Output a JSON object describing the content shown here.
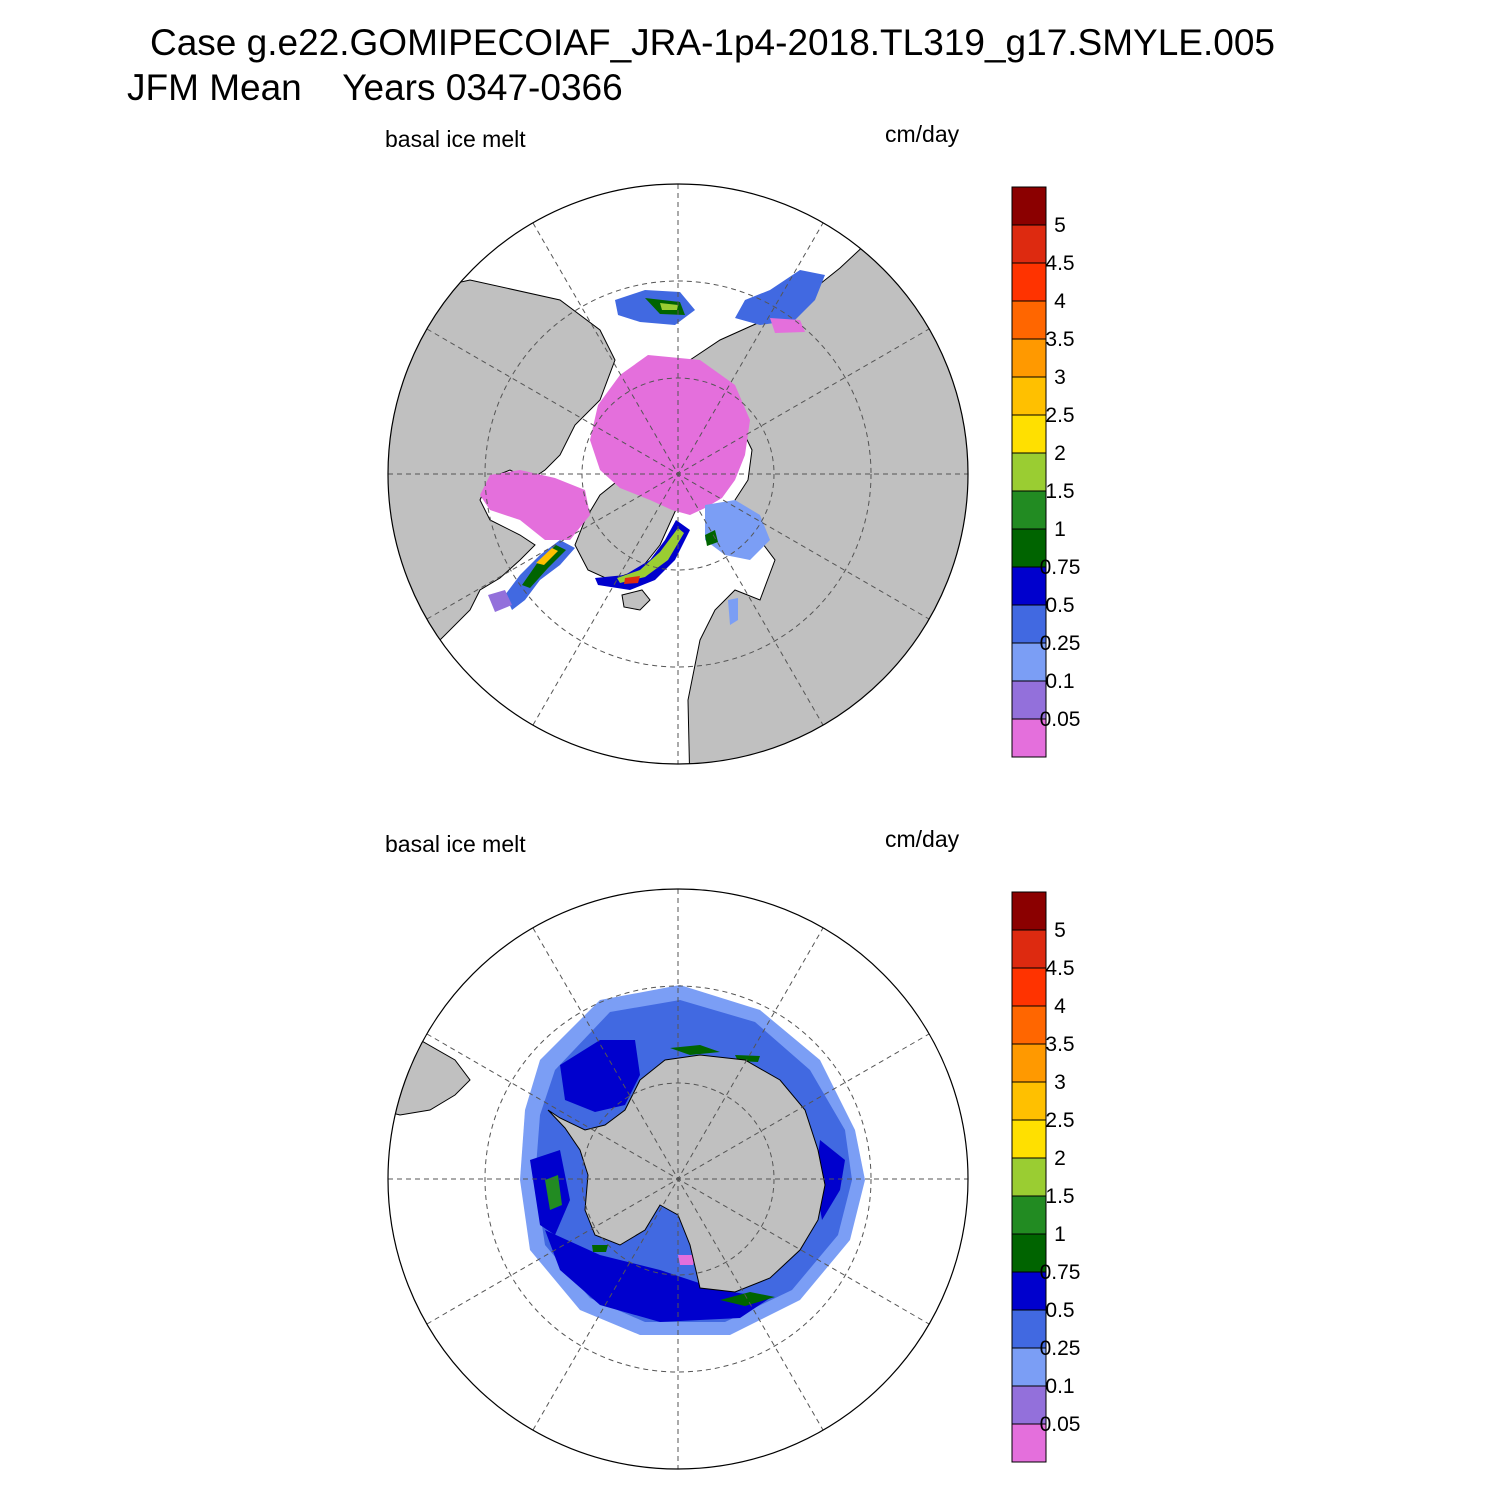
{
  "title": {
    "line1": "Case g.e22.GOMIPECOIAF_JRA-1p4-2018.TL319_g17.SMYLE.005",
    "line2": "JFM Mean    Years 0347-0366"
  },
  "panels": [
    {
      "id": "north",
      "hemisphere": "north",
      "left_label": "basal ice melt",
      "right_label": "cm/day"
    },
    {
      "id": "south",
      "hemisphere": "south",
      "left_label": "basal ice melt",
      "right_label": "cm/day"
    }
  ],
  "colorbar": {
    "levels": [
      "0.05",
      "0.1",
      "0.25",
      "0.5",
      "0.75",
      "1",
      "1.5",
      "2",
      "2.5",
      "3",
      "3.5",
      "4",
      "4.5",
      "5"
    ],
    "colors": [
      "#e46fdc",
      "#9370db",
      "#7b9ef5",
      "#4169e1",
      "#0000cd",
      "#006400",
      "#228b22",
      "#9acd32",
      "#ffe000",
      "#ffc000",
      "#ff9900",
      "#ff6600",
      "#ff3300",
      "#dd2a10",
      "#8b0000"
    ]
  },
  "map_colors": {
    "land": "#c0c0c0",
    "ocean": "#ffffff",
    "coast": "#000000",
    "grid": "#555555"
  }
}
